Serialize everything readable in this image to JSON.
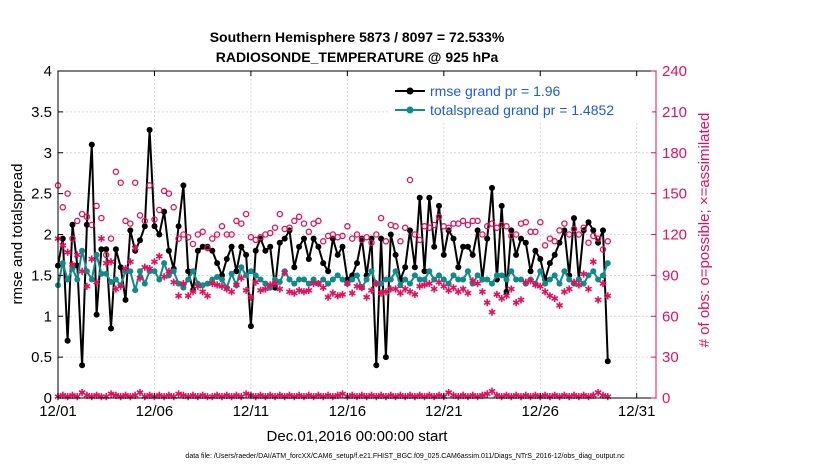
{
  "chart_data": {
    "type": "line",
    "title": "Southern Hemisphere 5873 / 8097 = 72.533%",
    "subtitle": "RADIOSONDE_TEMPERATURE @ 925 hPa",
    "xlabel": "Dec.01,2016 00:00:00 start",
    "ylabel": "rmse and totalspread",
    "ylabel_right": "# of obs: o=possible; ×=assimilated",
    "footnote": "data file: /Users/raeder/DAI/ATM_forcXX/CAM6_setup/f.e21.FHIST_BGC.f09_025.CAM6assim.011/Diags_NTrS_2016-12/obs_diag_output.nc",
    "xlim": [
      1,
      32
    ],
    "ylim": [
      0,
      4
    ],
    "ylim_right": [
      0,
      240
    ],
    "x_ticks": [
      1,
      6,
      11,
      16,
      21,
      26,
      31
    ],
    "x_tick_labels": [
      "12/01",
      "12/06",
      "12/11",
      "12/16",
      "12/21",
      "12/26",
      "12/31"
    ],
    "y_ticks": [
      "0",
      "0.5",
      "1",
      "1.5",
      "2",
      "2.5",
      "3",
      "3.5",
      "4"
    ],
    "y_ticks_right": [
      "0",
      "30",
      "60",
      "90",
      "120",
      "150",
      "180",
      "210",
      "240"
    ],
    "legend": {
      "position": "top-right",
      "entries": [
        "rmse grand pr = 1.96",
        "totalspread grand pr = 1.4852"
      ]
    },
    "colors": {
      "rmse": "#000000",
      "spread": "#108a8a",
      "obs": "#e0115f",
      "legend_text": "#1f5bd6"
    },
    "step": 0.25,
    "rmse": [
      1.62,
      1.95,
      0.7,
      2.12,
      1.62,
      0.4,
      2.12,
      3.1,
      1.02,
      1.82,
      1.82,
      0.85,
      1.82,
      1.6,
      1.2,
      2.05,
      1.8,
      1.93,
      2.1,
      3.28,
      2.1,
      2.0,
      2.28,
      1.8,
      1.58,
      2.1,
      2.6,
      1.55,
      1.32,
      1.8,
      1.85,
      1.85,
      1.8,
      1.65,
      1.5,
      1.7,
      1.85,
      1.55,
      1.85,
      1.75,
      0.88,
      1.8,
      1.95,
      1.8,
      1.85,
      1.35,
      1.9,
      1.95,
      2.05,
      1.6,
      1.85,
      1.95,
      1.7,
      1.95,
      1.85,
      1.65,
      1.55,
      1.95,
      1.75,
      1.85,
      1.45,
      1.5,
      1.65,
      1.95,
      1.5,
      1.95,
      0.4,
      1.95,
      0.5,
      2.0,
      1.75,
      1.45,
      1.6,
      2.05,
      1.6,
      2.45,
      1.55,
      2.45,
      1.85,
      2.35,
      1.75,
      2.05,
      1.95,
      1.6,
      1.85,
      1.85,
      1.75,
      2.05,
      1.45,
      1.95,
      2.57,
      1.45,
      2.35,
      1.3,
      2.05,
      1.75,
      1.95,
      1.9,
      1.55,
      1.8,
      1.7,
      1.45,
      1.65,
      1.75,
      1.9,
      2.05,
      1.5,
      2.2,
      1.45,
      2.05,
      2.15,
      2.05,
      1.9,
      2.05,
      0.45
    ],
    "spread": [
      1.38,
      1.65,
      1.45,
      1.58,
      1.45,
      1.8,
      1.55,
      1.45,
      1.75,
      1.52,
      1.52,
      1.42,
      1.45,
      1.38,
      1.55,
      1.55,
      1.32,
      1.55,
      1.4,
      1.55,
      1.55,
      1.45,
      1.65,
      1.5,
      1.55,
      1.4,
      1.35,
      1.45,
      1.55,
      1.4,
      1.38,
      1.4,
      1.45,
      1.48,
      1.45,
      1.35,
      1.52,
      1.38,
      1.6,
      1.5,
      1.55,
      1.5,
      1.45,
      1.4,
      1.35,
      1.45,
      1.42,
      1.55,
      1.45,
      1.4,
      1.45,
      1.45,
      1.4,
      1.45,
      1.4,
      1.45,
      1.4,
      1.45,
      1.5,
      1.45,
      1.4,
      1.45,
      1.5,
      1.35,
      1.45,
      1.55,
      1.4,
      1.4,
      1.45,
      1.45,
      1.55,
      1.38,
      1.45,
      1.4,
      1.5,
      1.45,
      1.45,
      1.55,
      1.45,
      1.5,
      1.45,
      1.4,
      1.5,
      1.45,
      1.45,
      1.55,
      1.4,
      1.5,
      1.45,
      1.45,
      1.4,
      1.5,
      1.5,
      1.45,
      1.55,
      1.45,
      1.45,
      1.4,
      1.45,
      1.4,
      1.55,
      1.4,
      1.45,
      1.5,
      1.4,
      1.55,
      1.45,
      1.4,
      1.45,
      1.4,
      1.5,
      1.55,
      1.45,
      1.5,
      1.65
    ],
    "obs_possible": [
      156,
      140,
      150,
      117,
      130,
      135,
      133,
      127,
      141,
      132,
      105,
      117,
      166,
      158,
      130,
      128,
      158,
      134,
      130,
      156,
      131,
      138,
      152,
      150,
      140,
      117,
      120,
      118,
      113,
      120,
      122,
      110,
      117,
      120,
      126,
      120,
      120,
      130,
      128,
      135,
      118,
      116,
      118,
      120,
      121,
      125,
      135,
      124,
      125,
      130,
      133,
      128,
      122,
      128,
      130,
      115,
      119,
      120,
      118,
      119,
      126,
      117,
      120,
      116,
      118,
      114,
      120,
      132,
      115,
      127,
      126,
      115,
      125,
      160,
      120,
      116,
      126,
      125,
      127,
      133,
      126,
      125,
      128,
      128,
      130,
      127,
      130,
      130,
      120,
      126,
      128,
      125,
      127,
      126,
      119,
      120,
      128,
      129,
      122,
      122,
      129,
      112,
      117,
      115,
      123,
      128,
      120,
      124,
      120,
      125,
      114,
      119,
      117,
      109,
      115
    ],
    "obs_assimilated": [
      117,
      112,
      107,
      98,
      105,
      93,
      82,
      102,
      85,
      117,
      99,
      100,
      80,
      82,
      95,
      100,
      110,
      88,
      96,
      95,
      100,
      104,
      89,
      93,
      85,
      75,
      84,
      75,
      78,
      82,
      78,
      75,
      84,
      83,
      82,
      80,
      78,
      83,
      88,
      79,
      74,
      85,
      79,
      80,
      83,
      84,
      80,
      92,
      78,
      77,
      79,
      78,
      79,
      84,
      84,
      81,
      74,
      77,
      75,
      76,
      84,
      77,
      82,
      81,
      74,
      79,
      84,
      77,
      78,
      80,
      80,
      77,
      80,
      78,
      76,
      82,
      83,
      84,
      80,
      85,
      82,
      79,
      81,
      78,
      80,
      77,
      86,
      84,
      78,
      70,
      63,
      76,
      73,
      75,
      80,
      70,
      72,
      85,
      86,
      83,
      82,
      78,
      75,
      73,
      68,
      78,
      80,
      85,
      83,
      91,
      80,
      100,
      72,
      84,
      75
    ],
    "obs_assimilated_bottom": [
      1,
      2,
      1,
      2,
      1,
      4,
      2,
      1,
      2,
      1,
      1,
      3,
      2,
      1,
      2,
      1,
      2,
      4,
      1,
      2,
      1,
      2,
      1,
      2,
      1,
      3,
      2,
      1,
      2,
      1,
      2,
      1,
      1,
      2,
      1,
      2,
      1,
      2,
      1,
      3,
      2,
      1,
      2,
      1,
      2,
      1,
      2,
      1,
      2,
      1,
      2,
      1,
      2,
      1,
      2,
      1,
      2,
      1,
      2,
      3,
      1,
      2,
      1,
      2,
      1,
      2,
      1,
      2,
      1,
      2,
      1,
      2,
      1,
      2,
      1,
      2,
      1,
      2,
      1,
      2,
      1,
      4,
      2,
      1,
      2,
      1,
      2,
      1,
      2,
      3,
      5,
      2,
      1,
      2,
      1,
      2,
      1,
      2,
      1,
      2,
      1,
      2,
      1,
      2,
      1,
      2,
      1,
      2,
      1,
      2,
      1,
      2,
      4,
      2,
      1
    ]
  }
}
